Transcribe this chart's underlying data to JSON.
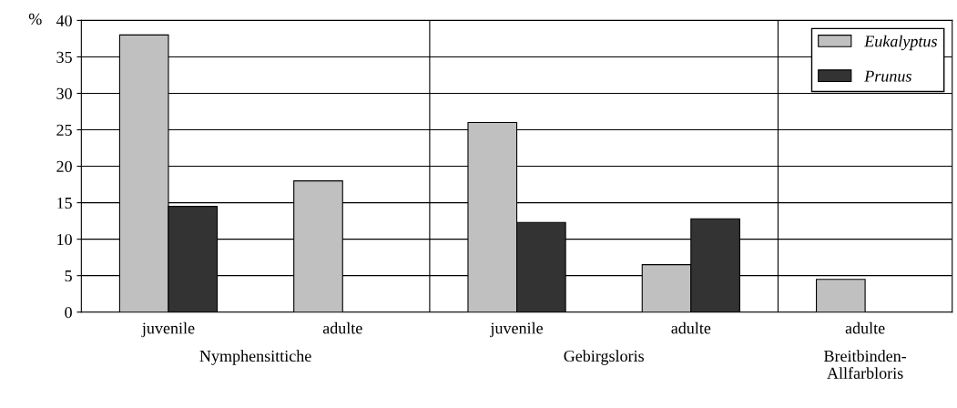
{
  "chart_data": {
    "type": "bar",
    "ylabel": "%",
    "categories": [
      "juvenile",
      "adulte",
      "juvenile",
      "adulte",
      "adulte"
    ],
    "series": [
      {
        "name": "Eukalyptus",
        "color": "#c0c0c0",
        "values": [
          38,
          18,
          26,
          6.5,
          4.5
        ]
      },
      {
        "name": "Prunus",
        "color": "#333333",
        "values": [
          14.5,
          null,
          12.3,
          12.8,
          null
        ]
      }
    ],
    "annotations": [
      "Nymphensittiche",
      "Gebirgsloris",
      "Breitbinden-\nAllfarbloris"
    ],
    "ylim": [
      0,
      40
    ],
    "yticks": [
      0,
      5,
      10,
      15,
      20,
      25,
      30,
      35,
      40
    ],
    "grid": "y",
    "legend": "top right"
  }
}
